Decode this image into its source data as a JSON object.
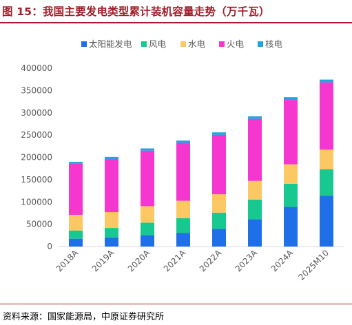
{
  "figure": {
    "title": "图 15：我国主要发电类型累计装机容量走势（万千瓦）",
    "source": "资料来源：国家能源局，中原证券研究所"
  },
  "colors": {
    "solar": "#1f6fe8",
    "wind": "#17c890",
    "hydro": "#fcc864",
    "thermal": "#f536cf",
    "nuclear": "#1fa6e0",
    "axis": "#d9d9d9",
    "tick_text": "#595959",
    "title": "#a11e2a"
  },
  "chart_data": {
    "type": "bar",
    "stacked": true,
    "legend_position": "top",
    "grid": false,
    "categories": [
      "2018A",
      "2019A",
      "2020A",
      "2021A",
      "2022A",
      "2023A",
      "2024A",
      "2025M10"
    ],
    "ylim": [
      0,
      400000
    ],
    "yticks": [
      0,
      50000,
      100000,
      150000,
      200000,
      250000,
      300000,
      350000,
      400000
    ],
    "ytick_labels": [
      "0",
      "50000",
      "100000",
      "150000",
      "200000",
      "250000",
      "300000",
      "350000",
      "400000"
    ],
    "series": [
      {
        "name": "太阳能发电",
        "color_key": "solar",
        "values": [
          17500,
          20500,
          25300,
          30700,
          39300,
          60900,
          88700,
          114000
        ]
      },
      {
        "name": "风电",
        "color_key": "wind",
        "values": [
          18400,
          21000,
          28200,
          32800,
          36500,
          44100,
          52100,
          59000
        ]
      },
      {
        "name": "水电",
        "color_key": "hydro",
        "values": [
          35200,
          35600,
          37000,
          39100,
          41400,
          42200,
          43600,
          44200
        ]
      },
      {
        "name": "火电",
        "color_key": "thermal",
        "values": [
          114400,
          119000,
          124500,
          129700,
          133200,
          139000,
          144400,
          151000
        ]
      },
      {
        "name": "核电",
        "color_key": "nuclear",
        "values": [
          4500,
          4900,
          5000,
          5300,
          5600,
          5700,
          6100,
          6200
        ]
      }
    ]
  }
}
